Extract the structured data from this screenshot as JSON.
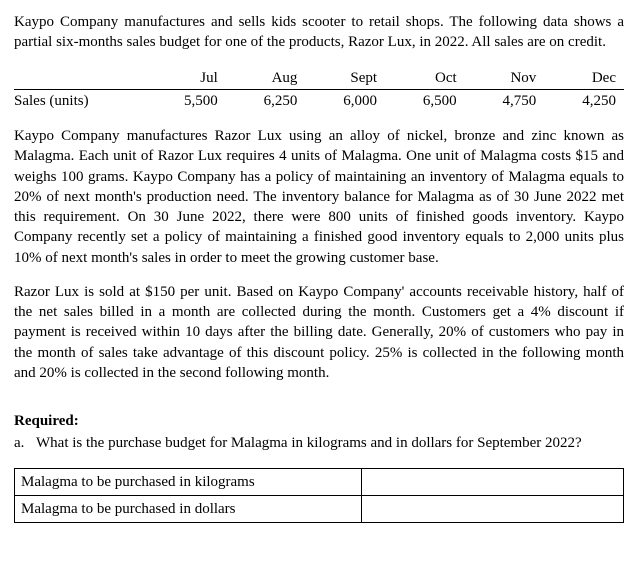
{
  "intro": "Kaypo Company manufactures and sells kids scooter to retail shops. The following data shows a partial six-months sales budget for one of the products, Razor Lux, in 2022. All sales are on credit.",
  "sales_table": {
    "row_label": "Sales (units)",
    "columns": [
      "Jul",
      "Aug",
      "Sept",
      "Oct",
      "Nov",
      "Dec"
    ],
    "values": [
      "5,500",
      "6,250",
      "6,000",
      "6,500",
      "4,750",
      "4,250"
    ]
  },
  "para2": "Kaypo Company manufactures Razor Lux using an alloy of nickel, bronze and zinc known as Malagma. Each unit of Razor Lux requires 4 units of Malagma. One unit of Malagma costs $15 and weighs 100 grams. Kaypo Company has a policy of maintaining an inventory of Malagma equals to 20% of next month's production need. The inventory balance for Malagma as of 30 June 2022 met this requirement. On 30 June 2022, there were 800 units of finished goods inventory. Kaypo Company recently set a policy of maintaining a finished good inventory equals to 2,000 units plus 10% of next month's sales in order to meet the growing customer base.",
  "para3": "Razor Lux is sold at $150 per unit. Based on Kaypo Company' accounts receivable history, half of the net sales billed in a month are collected during the month. Customers get a 4% discount if payment is received within 10 days after the billing date. Generally, 20% of customers who pay in the month of sales take advantage of this discount policy. 25% is collected in the following month and 20% is collected in the second following month.",
  "required_label": "Required:",
  "req_a_marker": "a.",
  "req_a_text": "What is the purchase budget for Malagma in kilograms and in dollars for September 2022?",
  "answer_rows": {
    "row1": "Malagma to be purchased in kilograms",
    "row2": "Malagma to be purchased in dollars"
  }
}
